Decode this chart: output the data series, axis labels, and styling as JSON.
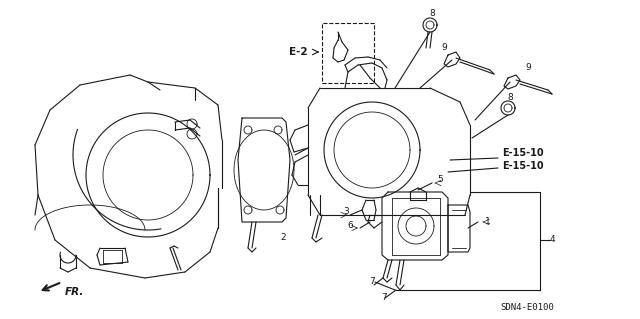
{
  "background_color": "#ffffff",
  "diagram_code": "SDN4-E0100",
  "line_color": "#1a1a1a",
  "label_color": "#000000",
  "labels": {
    "E2": "E-2",
    "E15_10": "E-15-10",
    "fr": "FR.",
    "num_1": "1",
    "num_2": "2",
    "num_3": "3",
    "num_4": "4",
    "num_5": "5",
    "num_6": "6",
    "num_7a": "7",
    "num_7b": "7",
    "num_8a": "8",
    "num_8b": "8",
    "num_9a": "9",
    "num_9b": "9"
  }
}
